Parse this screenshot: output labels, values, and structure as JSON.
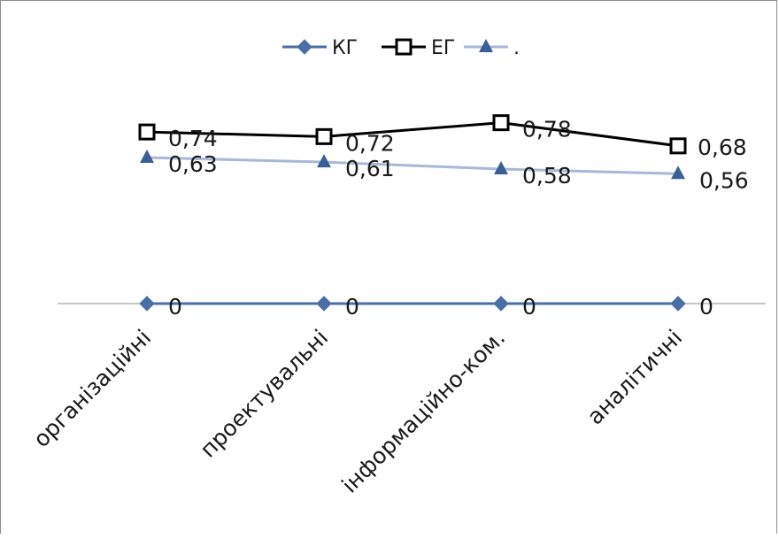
{
  "chart_data": {
    "type": "line",
    "title": "",
    "xlabel": "",
    "ylabel": "",
    "categories": [
      "організаційні",
      "проектувальні",
      "інформаційно-ком.",
      "аналітичні"
    ],
    "series": [
      {
        "name": "КГ",
        "values": [
          0,
          0,
          0,
          0
        ],
        "color": "#4a6fa5",
        "marker": "diamond"
      },
      {
        "name": "ЕГ",
        "values": [
          0.74,
          0.72,
          0.78,
          0.68
        ],
        "color": "#000000",
        "marker": "square-open"
      },
      {
        "name": ".",
        "values": [
          0.63,
          0.61,
          0.58,
          0.56
        ],
        "color": "#a9b8d6",
        "marker": "triangle",
        "marker_color": "#3a5f96"
      }
    ],
    "data_labels": {
      "КГ": [
        "0",
        "0",
        "0",
        "0"
      ],
      "ЕГ": [
        "0,74",
        "0,72",
        "0,78",
        "0,68"
      ],
      ".": [
        "0,63",
        "0,61",
        "0,58",
        "0,56"
      ]
    },
    "ylim": [
      0,
      0.78
    ],
    "grid": false,
    "legend_position": "top"
  }
}
